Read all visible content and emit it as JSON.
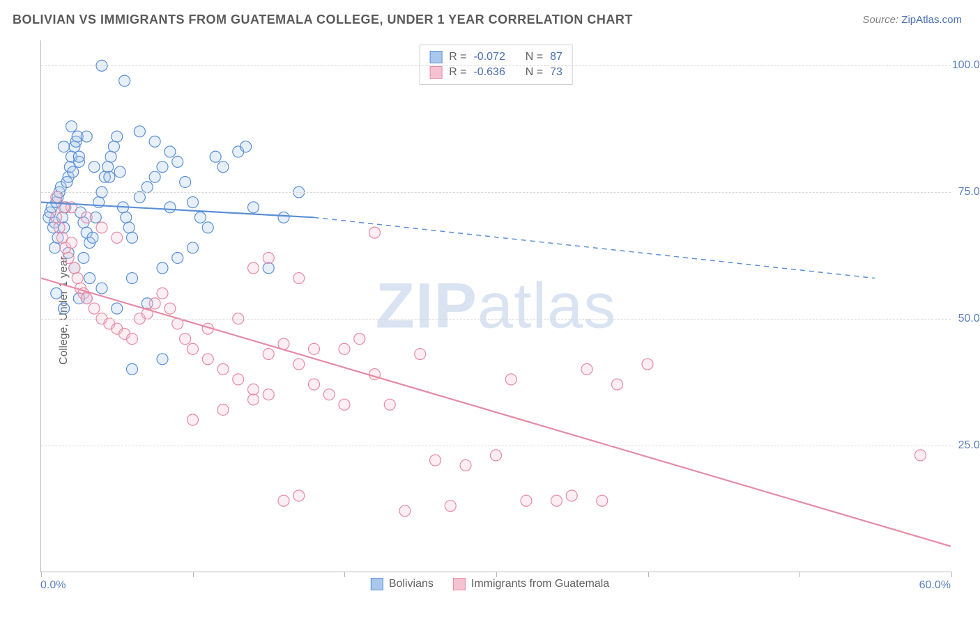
{
  "title": "BOLIVIAN VS IMMIGRANTS FROM GUATEMALA COLLEGE, UNDER 1 YEAR CORRELATION CHART",
  "source_prefix": "Source: ",
  "source_link": "ZipAtlas.com",
  "ylabel": "College, Under 1 year",
  "watermark_bold": "ZIP",
  "watermark_rest": "atlas",
  "chart": {
    "type": "scatter-with-regression",
    "xlim": [
      0,
      60
    ],
    "ylim": [
      0,
      105
    ],
    "x_tick_positions": [
      0,
      10,
      20,
      30,
      40,
      50,
      60
    ],
    "x_tick_labels_shown": {
      "0": "0.0%",
      "60": "60.0%"
    },
    "y_grid_positions": [
      25,
      50,
      75,
      100
    ],
    "y_tick_labels": {
      "25": "25.0%",
      "50": "50.0%",
      "75": "75.0%",
      "100": "100.0%"
    },
    "background_color": "#ffffff",
    "grid_color": "#d8d8d8",
    "axis_color": "#b8b8b8",
    "text_color": "#606060",
    "value_color": "#4b6fb3",
    "marker_radius": 8,
    "marker_stroke_width": 1.2,
    "marker_fill_opacity": 0.28,
    "trend_line_width": 2.2,
    "series": [
      {
        "id": "bolivians",
        "label": "Bolivians",
        "color_stroke": "#5b8fd6",
        "color_fill": "#a9c8ec",
        "stats": {
          "R": "-0.072",
          "N": "87"
        },
        "trend": {
          "x1": 0,
          "y1": 73,
          "x2_solid": 18,
          "y2_solid": 70,
          "x2_dash": 55,
          "y2_dash": 58
        },
        "points": [
          [
            0.5,
            70
          ],
          [
            0.6,
            71
          ],
          [
            0.7,
            72
          ],
          [
            0.8,
            68
          ],
          [
            0.9,
            69
          ],
          [
            1,
            73
          ],
          [
            1.1,
            74
          ],
          [
            1.2,
            75
          ],
          [
            1.3,
            76
          ],
          [
            1.4,
            70
          ],
          [
            1.5,
            68
          ],
          [
            1.6,
            72
          ],
          [
            1.7,
            77
          ],
          [
            1.8,
            78
          ],
          [
            1.9,
            80
          ],
          [
            2,
            82
          ],
          [
            2.1,
            79
          ],
          [
            2.2,
            84
          ],
          [
            2.3,
            85
          ],
          [
            2.4,
            86
          ],
          [
            2.5,
            81
          ],
          [
            2.6,
            71
          ],
          [
            2.8,
            69
          ],
          [
            3,
            67
          ],
          [
            3.2,
            65
          ],
          [
            3.4,
            66
          ],
          [
            3.6,
            70
          ],
          [
            3.8,
            73
          ],
          [
            4,
            75
          ],
          [
            4.2,
            78
          ],
          [
            4.4,
            80
          ],
          [
            4.6,
            82
          ],
          [
            4.8,
            84
          ],
          [
            5,
            86
          ],
          [
            5.2,
            79
          ],
          [
            5.4,
            72
          ],
          [
            5.6,
            70
          ],
          [
            5.8,
            68
          ],
          [
            6,
            66
          ],
          [
            6.5,
            74
          ],
          [
            7,
            76
          ],
          [
            7.5,
            78
          ],
          [
            8,
            80
          ],
          [
            8.5,
            83
          ],
          [
            9,
            81
          ],
          [
            9.5,
            77
          ],
          [
            10,
            73
          ],
          [
            10.5,
            70
          ],
          [
            11,
            68
          ],
          [
            11.5,
            82
          ],
          [
            12,
            80
          ],
          [
            4,
            100
          ],
          [
            5.5,
            97
          ],
          [
            6.5,
            87
          ],
          [
            7.5,
            85
          ],
          [
            8.5,
            72
          ],
          [
            5,
            52
          ],
          [
            7,
            53
          ],
          [
            3,
            54
          ],
          [
            4,
            56
          ],
          [
            6,
            58
          ],
          [
            8,
            60
          ],
          [
            9,
            62
          ],
          [
            10,
            64
          ],
          [
            2,
            88
          ],
          [
            3,
            86
          ],
          [
            1.5,
            84
          ],
          [
            2.5,
            82
          ],
          [
            3.5,
            80
          ],
          [
            4.5,
            78
          ],
          [
            13,
            83
          ],
          [
            14,
            72
          ],
          [
            15,
            60
          ],
          [
            16,
            70
          ],
          [
            17,
            75
          ],
          [
            13.5,
            84
          ],
          [
            1.8,
            63
          ],
          [
            2.2,
            60
          ],
          [
            0.9,
            64
          ],
          [
            1.1,
            66
          ],
          [
            2.8,
            62
          ],
          [
            3.2,
            58
          ],
          [
            6,
            40
          ],
          [
            8,
            42
          ],
          [
            1.5,
            52
          ],
          [
            2.5,
            54
          ],
          [
            1,
            55
          ]
        ]
      },
      {
        "id": "guatemala",
        "label": "Immigrants from Guatemala",
        "color_stroke": "#e68aa5",
        "color_fill": "#f4c2d0",
        "stats": {
          "R": "-0.636",
          "N": "73"
        },
        "trend": {
          "x1": 0,
          "y1": 58,
          "x2_solid": 60,
          "y2_solid": 5,
          "x2_dash": 60,
          "y2_dash": 5
        },
        "points": [
          [
            1,
            70
          ],
          [
            1.2,
            68
          ],
          [
            1.4,
            66
          ],
          [
            1.6,
            64
          ],
          [
            1.8,
            62
          ],
          [
            2,
            65
          ],
          [
            2.2,
            60
          ],
          [
            2.4,
            58
          ],
          [
            2.6,
            56
          ],
          [
            2.8,
            55
          ],
          [
            3,
            54
          ],
          [
            3.5,
            52
          ],
          [
            4,
            50
          ],
          [
            4.5,
            49
          ],
          [
            5,
            48
          ],
          [
            5.5,
            47
          ],
          [
            6,
            46
          ],
          [
            6.5,
            50
          ],
          [
            7,
            51
          ],
          [
            7.5,
            53
          ],
          [
            8,
            55
          ],
          [
            8.5,
            52
          ],
          [
            9,
            49
          ],
          [
            9.5,
            46
          ],
          [
            10,
            44
          ],
          [
            11,
            42
          ],
          [
            12,
            40
          ],
          [
            13,
            38
          ],
          [
            14,
            36
          ],
          [
            15,
            43
          ],
          [
            16,
            45
          ],
          [
            17,
            41
          ],
          [
            18,
            37
          ],
          [
            19,
            35
          ],
          [
            20,
            44
          ],
          [
            21,
            46
          ],
          [
            22,
            39
          ],
          [
            23,
            33
          ],
          [
            14,
            60
          ],
          [
            15,
            62
          ],
          [
            17,
            58
          ],
          [
            22,
            67
          ],
          [
            16,
            14
          ],
          [
            17,
            15
          ],
          [
            24,
            12
          ],
          [
            26,
            22
          ],
          [
            27,
            13
          ],
          [
            28,
            21
          ],
          [
            30,
            23
          ],
          [
            31,
            38
          ],
          [
            32,
            14
          ],
          [
            34,
            14
          ],
          [
            36,
            40
          ],
          [
            38,
            37
          ],
          [
            40,
            41
          ],
          [
            35,
            15
          ],
          [
            37,
            14
          ],
          [
            58,
            23
          ],
          [
            10,
            30
          ],
          [
            12,
            32
          ],
          [
            14,
            34
          ],
          [
            3,
            70
          ],
          [
            4,
            68
          ],
          [
            5,
            66
          ],
          [
            2,
            72
          ],
          [
            1,
            74
          ],
          [
            1.5,
            72
          ],
          [
            11,
            48
          ],
          [
            13,
            50
          ],
          [
            15,
            35
          ],
          [
            18,
            44
          ],
          [
            20,
            33
          ],
          [
            25,
            43
          ]
        ]
      }
    ]
  },
  "stats_labels": {
    "R": "R =",
    "N": "N ="
  }
}
